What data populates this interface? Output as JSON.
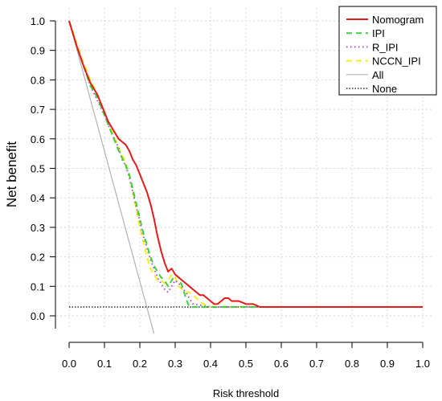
{
  "chart_data": {
    "type": "line",
    "xlabel": "Risk threshold",
    "ylabel": "Net benefit",
    "xlim": [
      0.0,
      1.0
    ],
    "ylim": [
      0.0,
      1.0
    ],
    "xticks": [
      "0.0",
      "0.1",
      "0.2",
      "0.3",
      "0.4",
      "0.5",
      "0.6",
      "0.7",
      "0.8",
      "0.9",
      "1.0"
    ],
    "yticks": [
      "0.0",
      "0.1",
      "0.2",
      "0.3",
      "0.4",
      "0.5",
      "0.6",
      "0.7",
      "0.8",
      "0.9",
      "1.0"
    ],
    "grid": true,
    "legend_position": "top-right",
    "series": [
      {
        "name": "Nomogram",
        "color": "#e41a1c",
        "style": "solid",
        "x": [
          0.0,
          0.02,
          0.04,
          0.06,
          0.07,
          0.08,
          0.09,
          0.1,
          0.11,
          0.12,
          0.13,
          0.14,
          0.15,
          0.16,
          0.17,
          0.18,
          0.19,
          0.2,
          0.21,
          0.22,
          0.23,
          0.24,
          0.25,
          0.26,
          0.27,
          0.28,
          0.29,
          0.3,
          0.31,
          0.32,
          0.33,
          0.34,
          0.35,
          0.36,
          0.37,
          0.38,
          0.39,
          0.4,
          0.41,
          0.42,
          0.43,
          0.44,
          0.45,
          0.46,
          0.47,
          0.48,
          0.5,
          0.52,
          0.54,
          0.56,
          0.6,
          0.7,
          0.8,
          0.9,
          1.0
        ],
        "y": [
          1.0,
          0.92,
          0.85,
          0.79,
          0.77,
          0.75,
          0.72,
          0.69,
          0.66,
          0.64,
          0.62,
          0.6,
          0.59,
          0.58,
          0.56,
          0.53,
          0.51,
          0.48,
          0.45,
          0.42,
          0.38,
          0.33,
          0.27,
          0.22,
          0.18,
          0.15,
          0.16,
          0.14,
          0.13,
          0.12,
          0.11,
          0.1,
          0.09,
          0.08,
          0.07,
          0.07,
          0.06,
          0.05,
          0.04,
          0.04,
          0.05,
          0.06,
          0.06,
          0.05,
          0.05,
          0.05,
          0.04,
          0.04,
          0.03,
          0.03,
          0.03,
          0.03,
          0.03,
          0.03,
          0.03
        ]
      },
      {
        "name": "IPI",
        "color": "#3bd23b",
        "style": "dashed",
        "x": [
          0.0,
          0.02,
          0.04,
          0.06,
          0.08,
          0.1,
          0.12,
          0.14,
          0.16,
          0.17,
          0.18,
          0.19,
          0.2,
          0.21,
          0.22,
          0.23,
          0.24,
          0.25,
          0.26,
          0.27,
          0.28,
          0.29,
          0.3,
          0.31,
          0.32,
          0.33,
          0.34,
          0.36,
          0.4,
          0.5,
          0.6,
          0.7,
          0.8,
          0.9,
          1.0
        ],
        "y": [
          1.0,
          0.92,
          0.85,
          0.78,
          0.74,
          0.68,
          0.62,
          0.56,
          0.51,
          0.48,
          0.43,
          0.38,
          0.33,
          0.28,
          0.24,
          0.2,
          0.17,
          0.15,
          0.13,
          0.12,
          0.1,
          0.12,
          0.14,
          0.13,
          0.1,
          0.06,
          0.03,
          0.03,
          0.03,
          0.03,
          0.03,
          0.03,
          0.03,
          0.03,
          0.03
        ]
      },
      {
        "name": "R_IPI",
        "color": "#b44ec8",
        "style": "dotted",
        "x": [
          0.0,
          0.02,
          0.04,
          0.06,
          0.08,
          0.1,
          0.12,
          0.14,
          0.15,
          0.16,
          0.17,
          0.18,
          0.19,
          0.2,
          0.21,
          0.22,
          0.23,
          0.24,
          0.25,
          0.26,
          0.27,
          0.28,
          0.29,
          0.3,
          0.31,
          0.33,
          0.35,
          0.4,
          0.5,
          0.6,
          0.7,
          0.8,
          0.9,
          1.0
        ],
        "y": [
          1.0,
          0.92,
          0.85,
          0.78,
          0.73,
          0.68,
          0.62,
          0.57,
          0.53,
          0.51,
          0.47,
          0.42,
          0.37,
          0.32,
          0.27,
          0.23,
          0.19,
          0.16,
          0.13,
          0.11,
          0.09,
          0.08,
          0.1,
          0.12,
          0.11,
          0.08,
          0.04,
          0.03,
          0.03,
          0.03,
          0.03,
          0.03,
          0.03,
          0.03
        ]
      },
      {
        "name": "NCCN_IPI",
        "color": "#f5ee1a",
        "style": "dashed",
        "x": [
          0.0,
          0.02,
          0.04,
          0.06,
          0.08,
          0.1,
          0.12,
          0.14,
          0.16,
          0.17,
          0.18,
          0.19,
          0.2,
          0.21,
          0.22,
          0.23,
          0.24,
          0.25,
          0.26,
          0.27,
          0.28,
          0.29,
          0.3,
          0.31,
          0.32,
          0.33,
          0.34,
          0.35,
          0.36,
          0.38,
          0.4,
          0.5,
          0.6,
          0.7,
          0.8,
          0.9,
          1.0
        ],
        "y": [
          1.0,
          0.93,
          0.86,
          0.8,
          0.75,
          0.69,
          0.63,
          0.57,
          0.52,
          0.48,
          0.42,
          0.36,
          0.3,
          0.25,
          0.2,
          0.16,
          0.14,
          0.12,
          0.12,
          0.11,
          0.12,
          0.14,
          0.13,
          0.1,
          0.09,
          0.08,
          0.08,
          0.07,
          0.06,
          0.04,
          0.03,
          0.03,
          0.03,
          0.03,
          0.03,
          0.03,
          0.03
        ]
      },
      {
        "name": "All",
        "color": "#b3b3b3",
        "style": "solid",
        "x": [
          0.0,
          0.24
        ],
        "y": [
          1.0,
          -0.06
        ]
      },
      {
        "name": "None",
        "color": "#000000",
        "style": "dotted",
        "x": [
          0.0,
          1.0
        ],
        "y": [
          0.03,
          0.03
        ]
      }
    ]
  }
}
